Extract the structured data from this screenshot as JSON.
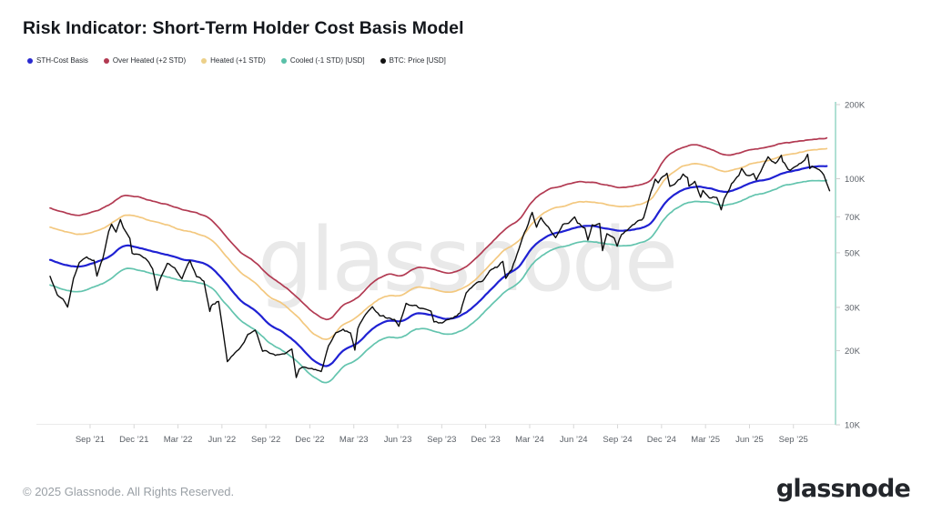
{
  "title": "Risk Indicator: Short-Term Holder Cost Basis Model",
  "watermark": "glassnode",
  "footer": {
    "copyright": "© 2025 Glassnode. All Rights Reserved.",
    "logo": "glassnode"
  },
  "legend": {
    "items": [
      {
        "label": "STH-Cost Basis",
        "color": "#2a2ad0"
      },
      {
        "label": "Over Heated (+2 STD)",
        "color": "#b23a52"
      },
      {
        "label": "Heated (+1 STD)",
        "color": "#ecd089"
      },
      {
        "label": "Cooled (-1 STD) [USD]",
        "color": "#59c0a8"
      },
      {
        "label": "BTC: Price [USD]",
        "color": "#111111"
      }
    ]
  },
  "chart_data": {
    "type": "line",
    "title": "Risk Indicator: Short-Term Holder Cost Basis Model",
    "y_scale": "log",
    "y_unit": "USD (thousands)",
    "ylim": [
      10,
      200
    ],
    "grid": false,
    "legend_position": "top-left",
    "axis_color": "#8fd2c2",
    "y_ticks": [
      {
        "label": "200K",
        "value": 200
      },
      {
        "label": "100K",
        "value": 100
      },
      {
        "label": "70K",
        "value": 70
      },
      {
        "label": "50K",
        "value": 50
      },
      {
        "label": "30K",
        "value": 30
      },
      {
        "label": "20K",
        "value": 20
      },
      {
        "label": "10K",
        "value": 10
      }
    ],
    "x_unit": "months since mid-June 2021",
    "x_ticks": [
      {
        "label": "Sep ’21",
        "t": 2.73
      },
      {
        "label": "Dec ’21",
        "t": 5.73
      },
      {
        "label": "Mar ’22",
        "t": 8.73
      },
      {
        "label": "Jun ’22",
        "t": 11.73
      },
      {
        "label": "Sep ’22",
        "t": 14.73
      },
      {
        "label": "Dec ’22",
        "t": 17.73
      },
      {
        "label": "Mar ’23",
        "t": 20.73
      },
      {
        "label": "Jun ’23",
        "t": 23.73
      },
      {
        "label": "Sep ’23",
        "t": 26.73
      },
      {
        "label": "Dec ’23",
        "t": 29.73
      },
      {
        "label": "Mar ’24",
        "t": 32.73
      },
      {
        "label": "Jun ’24",
        "t": 35.73
      },
      {
        "label": "Sep ’24",
        "t": 38.73
      },
      {
        "label": "Dec ’24",
        "t": 41.73
      },
      {
        "label": "Mar ’25",
        "t": 44.73
      },
      {
        "label": "Jun ’25",
        "t": 47.73
      },
      {
        "label": "Sep ’25",
        "t": 50.73
      }
    ],
    "series": [
      {
        "name": "Over Heated (+2 STD)",
        "color": "#b23a52",
        "width": 1.7,
        "smooth": true,
        "jitter": 0.9,
        "t0": 0,
        "dt": 1,
        "values": [
          76,
          73,
          71.5,
          73.5,
          78,
          85.5,
          84.5,
          81,
          78.5,
          75,
          72.5,
          68,
          58.5,
          50,
          45.5,
          40,
          36.5,
          32.5,
          28.5,
          26.8,
          30.5,
          33,
          37.5,
          40.5,
          40.5,
          43.5,
          43,
          41.5,
          42.5,
          47,
          54,
          62,
          68,
          82,
          90,
          93.5,
          96.5,
          96.5,
          94,
          92,
          93.5,
          99,
          121,
          133,
          137,
          132,
          125,
          127,
          132,
          134,
          139,
          141,
          145,
          146.5
        ]
      },
      {
        "name": "Heated (+1 STD)",
        "color": "#f3c87f",
        "width": 1.7,
        "smooth": true,
        "jitter": 0.9,
        "t0": 0,
        "dt": 1,
        "values": [
          63.5,
          61,
          59.5,
          61,
          64.5,
          70.5,
          70,
          67,
          65,
          62,
          60,
          56.5,
          48.5,
          41.5,
          37.5,
          33,
          30.5,
          27,
          23.5,
          22.3,
          25.5,
          27.5,
          31,
          33.5,
          33.5,
          36,
          35.5,
          34.5,
          35.5,
          39,
          44.5,
          51,
          56,
          67,
          74,
          77,
          80,
          80.5,
          78.5,
          77,
          78,
          82.5,
          100,
          111,
          115,
          112,
          107,
          110,
          116,
          119,
          124.5,
          127.5,
          131,
          132.5
        ]
      },
      {
        "name": "Cooled (-1 STD) [USD]",
        "color": "#63c4ae",
        "width": 1.7,
        "smooth": true,
        "jitter": 0.9,
        "t0": 0,
        "dt": 1,
        "values": [
          37,
          35.5,
          35,
          36.5,
          38.5,
          42.5,
          42.5,
          41,
          40,
          38.5,
          38,
          36,
          31,
          26.8,
          24.3,
          21.5,
          19.8,
          17.8,
          15.6,
          14.9,
          17.1,
          18.4,
          21,
          22.6,
          22.6,
          24.4,
          24.2,
          23.4,
          24.1,
          26.4,
          30.2,
          34.5,
          38,
          45.5,
          50.5,
          52.7,
          55,
          55.5,
          54.3,
          53.5,
          54.5,
          57.5,
          69.5,
          77.5,
          80.5,
          80,
          77.5,
          80.5,
          85.5,
          88,
          93,
          95.5,
          98,
          98.5
        ]
      },
      {
        "name": "STH-Cost Basis",
        "color": "#1f21d3",
        "width": 2.2,
        "smooth": true,
        "jitter": 0.6,
        "t0": 0,
        "dt": 1,
        "values": [
          46.8,
          44.8,
          44,
          45.5,
          48,
          53,
          52.5,
          50.5,
          49,
          47,
          46,
          43.5,
          37.5,
          32,
          29,
          25.5,
          23.5,
          21,
          18.3,
          17.4,
          20,
          21.5,
          24.5,
          26.3,
          26.3,
          28.3,
          28,
          27,
          27.8,
          30.5,
          35,
          40,
          44,
          53,
          58.5,
          61,
          63.5,
          64,
          62.5,
          61.5,
          62.5,
          66,
          80,
          89,
          92.5,
          91.5,
          88.5,
          91.5,
          97,
          100,
          105.5,
          108.5,
          112,
          112.5
        ]
      },
      {
        "name": "BTC: Price [USD]",
        "color": "#0d0d0d",
        "width": 1.4,
        "smooth": false,
        "jitter": 2.8,
        "points": [
          [
            0,
            40.1
          ],
          [
            0.5,
            33.9
          ],
          [
            1,
            31.6
          ],
          [
            1.2,
            29.8
          ],
          [
            1.6,
            39.9
          ],
          [
            2,
            46.4
          ],
          [
            2.5,
            48.8
          ],
          [
            3,
            47.1
          ],
          [
            3.2,
            40.7
          ],
          [
            3.6,
            47.6
          ],
          [
            4,
            61.5
          ],
          [
            4.2,
            66
          ],
          [
            4.5,
            60.9
          ],
          [
            4.8,
            68.5
          ],
          [
            5,
            63.6
          ],
          [
            5.45,
            57
          ],
          [
            5.6,
            49.3
          ],
          [
            6,
            48.9
          ],
          [
            6.5,
            47.3
          ],
          [
            7,
            43.1
          ],
          [
            7.3,
            35.1
          ],
          [
            7.5,
            38.7
          ],
          [
            8,
            44.6
          ],
          [
            8.5,
            43.2
          ],
          [
            9,
            39.3
          ],
          [
            9.55,
            46.3
          ],
          [
            10,
            40.4
          ],
          [
            10.5,
            38.5
          ],
          [
            10.9,
            29
          ],
          [
            11,
            30.2
          ],
          [
            11.5,
            31.8
          ],
          [
            12.1,
            17.7
          ],
          [
            12.5,
            19.2
          ],
          [
            13,
            20.8
          ],
          [
            13.5,
            23.3
          ],
          [
            14,
            24.1
          ],
          [
            14.5,
            20.1
          ],
          [
            15,
            19.7
          ],
          [
            15.5,
            19.3
          ],
          [
            16,
            19.1
          ],
          [
            16.5,
            20.5
          ],
          [
            16.8,
            15.6
          ],
          [
            17,
            16.9
          ],
          [
            17.5,
            17.1
          ],
          [
            18,
            16.7
          ],
          [
            18.5,
            16.6
          ],
          [
            19,
            20.9
          ],
          [
            19.5,
            23.7
          ],
          [
            20,
            24.6
          ],
          [
            20.5,
            23.6
          ],
          [
            20.8,
            20.2
          ],
          [
            21,
            24.7
          ],
          [
            21.55,
            28.5
          ],
          [
            22,
            30.3
          ],
          [
            22.5,
            28.1
          ],
          [
            23,
            27.2
          ],
          [
            23.5,
            26.8
          ],
          [
            23.8,
            25.5
          ],
          [
            24.3,
            30.8
          ],
          [
            24.5,
            30.5
          ],
          [
            25,
            30.3
          ],
          [
            25.5,
            29.2
          ],
          [
            26,
            29.1
          ],
          [
            26.2,
            26.1
          ],
          [
            26.5,
            25.9
          ],
          [
            27,
            26.6
          ],
          [
            27.5,
            27
          ],
          [
            28,
            28.5
          ],
          [
            28.4,
            34.5
          ],
          [
            28.5,
            34.7
          ],
          [
            29,
            37.9
          ],
          [
            29.5,
            38.7
          ],
          [
            30,
            42.9
          ],
          [
            30.5,
            44.2
          ],
          [
            30.9,
            46.6
          ],
          [
            31.1,
            39.9
          ],
          [
            31.5,
            43.1
          ],
          [
            32,
            52
          ],
          [
            32.5,
            62.4
          ],
          [
            32.9,
            73.1
          ],
          [
            33.2,
            63.8
          ],
          [
            33.5,
            69.7
          ],
          [
            34,
            63.4
          ],
          [
            34.5,
            58.3
          ],
          [
            35,
            66.2
          ],
          [
            35.5,
            67.7
          ],
          [
            35.8,
            70.8
          ],
          [
            36,
            66.6
          ],
          [
            36.5,
            62.8
          ],
          [
            36.7,
            56.7
          ],
          [
            37,
            64.7
          ],
          [
            37.5,
            64.9
          ],
          [
            37.7,
            50
          ],
          [
            38,
            58.8
          ],
          [
            38.5,
            58
          ],
          [
            38.7,
            53.9
          ],
          [
            39,
            60
          ],
          [
            39.5,
            63.3
          ],
          [
            40,
            67
          ],
          [
            40.5,
            69.5
          ],
          [
            40.7,
            75.9
          ],
          [
            41,
            88
          ],
          [
            41.3,
            99
          ],
          [
            41.5,
            96.4
          ],
          [
            41.7,
            101.2
          ],
          [
            42.1,
            106.3
          ],
          [
            42.3,
            94
          ],
          [
            42.5,
            94.4
          ],
          [
            43,
            100.5
          ],
          [
            43.2,
            106.1
          ],
          [
            43.5,
            102.1
          ],
          [
            43.6,
            93.5
          ],
          [
            44,
            97.5
          ],
          [
            44.4,
            84.3
          ],
          [
            44.55,
            90
          ],
          [
            45,
            84.3
          ],
          [
            45.5,
            85.2
          ],
          [
            45.8,
            75
          ],
          [
            46,
            83.7
          ],
          [
            46.5,
            96.5
          ],
          [
            47,
            103.7
          ],
          [
            47.2,
            111.7
          ],
          [
            47.5,
            105.6
          ],
          [
            48,
            105.5
          ],
          [
            48.2,
            99
          ],
          [
            48.5,
            106.1
          ],
          [
            49,
            122.8
          ],
          [
            49.5,
            114.7
          ],
          [
            49.9,
            124.2
          ],
          [
            50,
            117.4
          ],
          [
            50.5,
            108.2
          ],
          [
            51,
            115.5
          ],
          [
            51.5,
            118.6
          ],
          [
            51.7,
            126.2
          ],
          [
            51.85,
            110
          ],
          [
            52,
            113
          ],
          [
            52.5,
            110.1
          ],
          [
            52.8,
            105
          ],
          [
            53,
            97
          ],
          [
            53.2,
            89.3
          ]
        ]
      }
    ]
  }
}
